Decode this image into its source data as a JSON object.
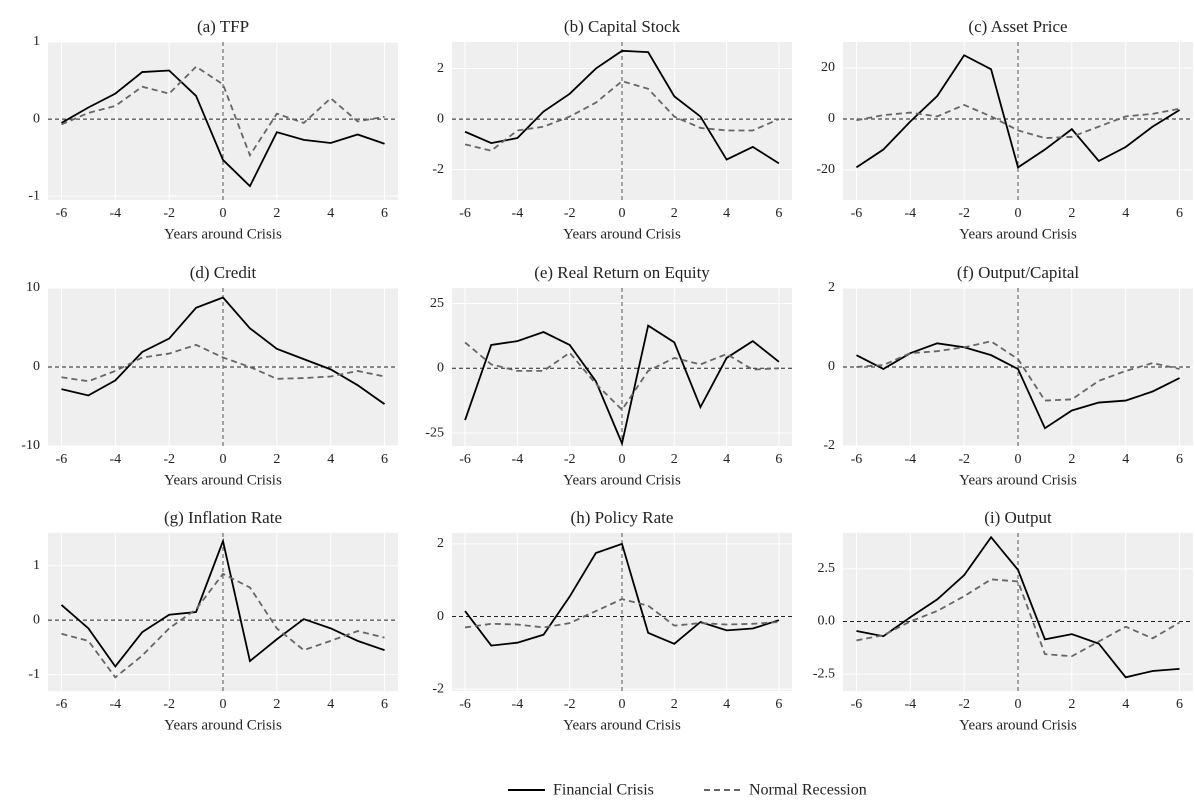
{
  "chart_data": [
    {
      "type": "line",
      "title": "(a) TFP",
      "x_label": "Years around Crisis",
      "x": [
        -6,
        -5,
        -4,
        -3,
        -2,
        -1,
        0,
        1,
        2,
        3,
        4,
        5,
        6
      ],
      "xlim": [
        -6.5,
        6.5
      ],
      "xticks": [
        -6,
        -4,
        -2,
        0,
        2,
        4,
        6
      ],
      "ylim": [
        -1.05,
        1
      ],
      "yticks": [
        -1,
        0,
        1
      ],
      "grid": true,
      "series": [
        {
          "name": "Financial Crisis",
          "color": "#000000",
          "dash": false,
          "values": [
            -0.05,
            0.15,
            0.33,
            0.61,
            0.63,
            0.3,
            -0.53,
            -0.87,
            -0.17,
            -0.27,
            -0.31,
            -0.2,
            -0.32
          ]
        },
        {
          "name": "Normal Recession",
          "color": "#666666",
          "dash": true,
          "values": [
            -0.07,
            0.08,
            0.17,
            0.42,
            0.33,
            0.68,
            0.45,
            -0.47,
            0.07,
            -0.05,
            0.27,
            -0.03,
            0.03
          ]
        }
      ]
    },
    {
      "type": "line",
      "title": "(b) Capital Stock",
      "x_label": "Years around Crisis",
      "x": [
        -6,
        -5,
        -4,
        -3,
        -2,
        -1,
        0,
        1,
        2,
        3,
        4,
        5,
        6
      ],
      "xlim": [
        -6.5,
        6.5
      ],
      "xticks": [
        -6,
        -4,
        -2,
        0,
        2,
        4,
        6
      ],
      "ylim": [
        -3.2,
        3.05
      ],
      "yticks": [
        -2,
        0,
        2
      ],
      "grid": true,
      "series": [
        {
          "name": "Financial Crisis",
          "color": "#000000",
          "dash": false,
          "values": [
            -0.5,
            -0.95,
            -0.75,
            0.3,
            1.0,
            2.0,
            2.7,
            2.65,
            0.9,
            0.1,
            -1.6,
            -1.1,
            -1.75
          ]
        },
        {
          "name": "Normal Recession",
          "color": "#666666",
          "dash": true,
          "values": [
            -1.0,
            -1.25,
            -0.45,
            -0.3,
            0.1,
            0.65,
            1.5,
            1.2,
            0.1,
            -0.35,
            -0.45,
            -0.45,
            0.0
          ]
        }
      ]
    },
    {
      "type": "line",
      "title": "(c) Asset Price",
      "x_label": "Years around Crisis",
      "x": [
        -6,
        -5,
        -4,
        -3,
        -2,
        -1,
        0,
        1,
        2,
        3,
        4,
        5,
        6
      ],
      "xlim": [
        -6.5,
        6.5
      ],
      "xticks": [
        -6,
        -4,
        -2,
        0,
        2,
        4,
        6
      ],
      "ylim": [
        -31.8,
        30.2
      ],
      "yticks": [
        -20,
        0,
        20
      ],
      "grid": true,
      "series": [
        {
          "name": "Financial Crisis",
          "color": "#000000",
          "dash": false,
          "values": [
            -19,
            -12,
            -1,
            9,
            25,
            19.5,
            -19,
            -12,
            -4,
            -16.5,
            -11,
            -3,
            3.5
          ]
        },
        {
          "name": "Normal Recession",
          "color": "#666666",
          "dash": true,
          "values": [
            -0.5,
            1.5,
            2.5,
            1,
            5.5,
            1,
            -4.5,
            -7.5,
            -7,
            -3,
            1,
            2,
            4
          ]
        }
      ]
    },
    {
      "type": "line",
      "title": "(d) Credit",
      "x_label": "Years around Crisis",
      "x": [
        -6,
        -5,
        -4,
        -3,
        -2,
        -1,
        0,
        1,
        2,
        3,
        4,
        5,
        6
      ],
      "xlim": [
        -6.5,
        6.5
      ],
      "xticks": [
        -6,
        -4,
        -2,
        0,
        2,
        4,
        6
      ],
      "ylim": [
        -10,
        10
      ],
      "yticks": [
        -10,
        0,
        10
      ],
      "grid": true,
      "series": [
        {
          "name": "Financial Crisis",
          "color": "#000000",
          "dash": false,
          "values": [
            -2.8,
            -3.6,
            -1.7,
            1.9,
            3.6,
            7.5,
            8.8,
            4.9,
            2.3,
            1,
            -0.3,
            -2.3,
            -4.7
          ]
        },
        {
          "name": "Normal Recession",
          "color": "#666666",
          "dash": true,
          "values": [
            -1.3,
            -1.8,
            -0.5,
            1.2,
            1.7,
            2.8,
            1.2,
            0,
            -1.5,
            -1.4,
            -1.2,
            -0.5,
            -1.2
          ]
        }
      ]
    },
    {
      "type": "line",
      "title": "(e) Real Return on Equity",
      "x_label": "Years around Crisis",
      "x": [
        -6,
        -5,
        -4,
        -3,
        -2,
        -1,
        0,
        1,
        2,
        3,
        4,
        5,
        6
      ],
      "xlim": [
        -6.5,
        6.5
      ],
      "xticks": [
        -6,
        -4,
        -2,
        0,
        2,
        4,
        6
      ],
      "ylim": [
        -30,
        31
      ],
      "yticks": [
        -25,
        0,
        25
      ],
      "grid": true,
      "series": [
        {
          "name": "Financial Crisis",
          "color": "#000000",
          "dash": false,
          "values": [
            -20,
            9,
            10.5,
            14,
            9,
            -5,
            -29,
            16.5,
            10,
            -15,
            4,
            10.5,
            2.5
          ]
        },
        {
          "name": "Normal Recession",
          "color": "#666666",
          "dash": true,
          "values": [
            10,
            1.5,
            -1,
            -1,
            6,
            -6,
            -16,
            -1,
            4,
            1.5,
            5.5,
            -0.5,
            0
          ]
        }
      ]
    },
    {
      "type": "line",
      "title": "(f) Output/Capital",
      "x_label": "Years around Crisis",
      "x": [
        -6,
        -5,
        -4,
        -3,
        -2,
        -1,
        0,
        1,
        2,
        3,
        4,
        5,
        6
      ],
      "xlim": [
        -6.5,
        6.5
      ],
      "xticks": [
        -6,
        -4,
        -2,
        0,
        2,
        4,
        6
      ],
      "ylim": [
        -2,
        2
      ],
      "yticks": [
        -2,
        0,
        2
      ],
      "grid": true,
      "series": [
        {
          "name": "Financial Crisis",
          "color": "#000000",
          "dash": false,
          "values": [
            0.3,
            -0.05,
            0.35,
            0.6,
            0.5,
            0.3,
            -0.05,
            -1.55,
            -1.1,
            -0.9,
            -0.85,
            -0.62,
            -0.28
          ]
        },
        {
          "name": "Normal Recession",
          "color": "#666666",
          "dash": true,
          "values": [
            0.0,
            0.05,
            0.35,
            0.4,
            0.5,
            0.65,
            0.2,
            -0.85,
            -0.82,
            -0.35,
            -0.1,
            0.1,
            -0.05
          ]
        }
      ]
    },
    {
      "type": "line",
      "title": "(g) Inflation Rate",
      "x_label": "Years around Crisis",
      "x": [
        -6,
        -5,
        -4,
        -3,
        -2,
        -1,
        0,
        1,
        2,
        3,
        4,
        5,
        6
      ],
      "xlim": [
        -6.5,
        6.5
      ],
      "xticks": [
        -6,
        -4,
        -2,
        0,
        2,
        4,
        6
      ],
      "ylim": [
        -1.3,
        1.6
      ],
      "yticks": [
        -1,
        0,
        1
      ],
      "grid": true,
      "series": [
        {
          "name": "Financial Crisis",
          "color": "#000000",
          "dash": false,
          "values": [
            0.28,
            -0.15,
            -0.85,
            -0.22,
            0.1,
            0.15,
            1.45,
            -0.75,
            -0.35,
            0.02,
            -0.15,
            -0.38,
            -0.55
          ]
        },
        {
          "name": "Normal Recession",
          "color": "#666666",
          "dash": true,
          "values": [
            -0.25,
            -0.38,
            -1.05,
            -0.65,
            -0.15,
            0.2,
            0.85,
            0.6,
            -0.15,
            -0.55,
            -0.38,
            -0.2,
            -0.32
          ]
        }
      ]
    },
    {
      "type": "line",
      "title": "(h) Policy Rate",
      "x_label": "Years around Crisis",
      "x": [
        -6,
        -5,
        -4,
        -3,
        -2,
        -1,
        0,
        1,
        2,
        3,
        4,
        5,
        6
      ],
      "xlim": [
        -6.5,
        6.5
      ],
      "xticks": [
        -6,
        -4,
        -2,
        0,
        2,
        4,
        6
      ],
      "ylim": [
        -2.05,
        2.3
      ],
      "yticks": [
        -2,
        0,
        2
      ],
      "grid": true,
      "series": [
        {
          "name": "Financial Crisis",
          "color": "#000000",
          "dash": false,
          "values": [
            0.15,
            -0.8,
            -0.72,
            -0.5,
            0.55,
            1.75,
            2.0,
            -0.45,
            -0.75,
            -0.15,
            -0.38,
            -0.33,
            -0.1
          ]
        },
        {
          "name": "Normal Recession",
          "color": "#666666",
          "dash": true,
          "values": [
            -0.3,
            -0.2,
            -0.22,
            -0.3,
            -0.18,
            0.15,
            0.48,
            0.3,
            -0.25,
            -0.18,
            -0.22,
            -0.2,
            -0.15
          ]
        }
      ]
    },
    {
      "type": "line",
      "title": "(i) Output",
      "x_label": "Years around Crisis",
      "x": [
        -6,
        -5,
        -4,
        -3,
        -2,
        -1,
        0,
        1,
        2,
        3,
        4,
        5,
        6
      ],
      "xlim": [
        -6.5,
        6.5
      ],
      "xticks": [
        -6,
        -4,
        -2,
        0,
        2,
        4,
        6
      ],
      "ylim": [
        -3.3,
        4.2
      ],
      "yticks": [
        -2.5,
        {
          "value": 0,
          "label": "0.0"
        },
        2.5
      ],
      "grid": true,
      "series": [
        {
          "name": "Financial Crisis",
          "color": "#000000",
          "dash": false,
          "values": [
            -0.45,
            -0.7,
            0.2,
            1.05,
            2.2,
            4.0,
            2.45,
            -0.85,
            -0.6,
            -1.05,
            -2.65,
            -2.35,
            -2.25
          ]
        },
        {
          "name": "Normal Recession",
          "color": "#666666",
          "dash": true,
          "values": [
            -0.9,
            -0.65,
            0,
            0.5,
            1.2,
            2.0,
            1.9,
            -1.55,
            -1.65,
            -0.95,
            -0.25,
            -0.8,
            -0.05
          ]
        }
      ]
    }
  ]
}
